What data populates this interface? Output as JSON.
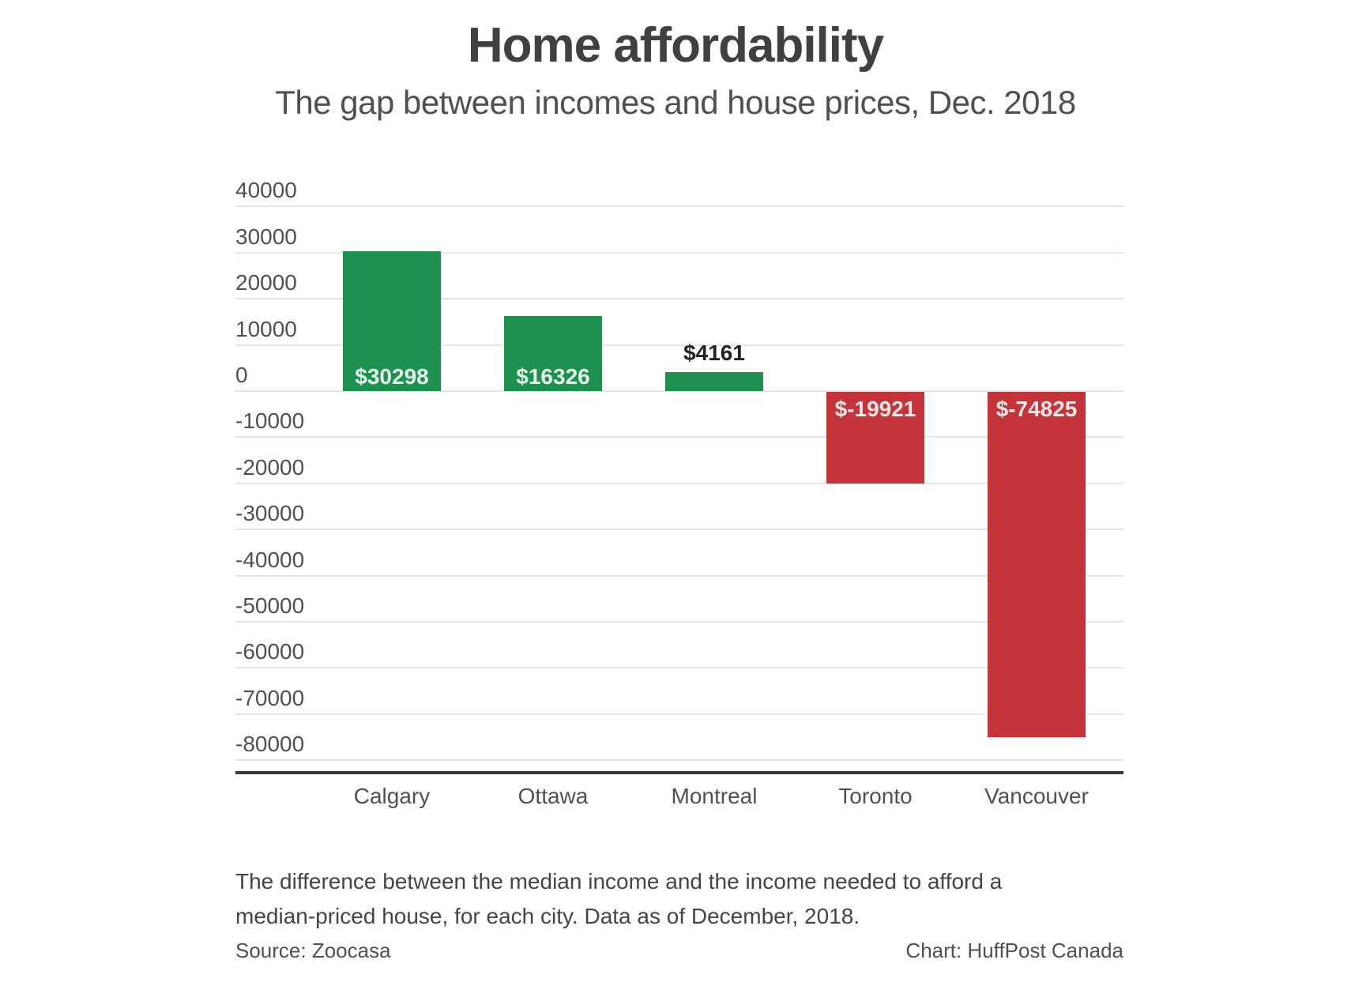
{
  "title": "Home affordability",
  "subtitle": "The gap between incomes and house prices, Dec. 2018",
  "footer": {
    "note_line1": "The difference between the median income and the income needed to afford a",
    "note_line2": "median-priced house, for each city. Data as of December, 2018.",
    "source": "Source: Zoocasa",
    "credit": "Chart: HuffPost Canada"
  },
  "colors": {
    "positive": "#1e9150",
    "negative": "#c4343a",
    "gridline": "#e6e6e6",
    "axis": "#3a3a3a"
  },
  "chart_data": {
    "type": "bar",
    "title": "Home affordability",
    "subtitle": "The gap between incomes and house prices, Dec. 2018",
    "xlabel": "",
    "ylabel": "",
    "categories": [
      "Calgary",
      "Ottawa",
      "Montreal",
      "Toronto",
      "Vancouver"
    ],
    "values": [
      30298,
      16326,
      4161,
      -19921,
      -74825
    ],
    "labels": [
      "$30298",
      "$16326",
      "$4161",
      "$-19921",
      "$-74825"
    ],
    "yticks": [
      40000,
      30000,
      20000,
      10000,
      0,
      -10000,
      -20000,
      -30000,
      -40000,
      -50000,
      -60000,
      -70000,
      -80000
    ],
    "ylim": [
      -80000,
      40000
    ],
    "grid": true,
    "legend": "none"
  }
}
